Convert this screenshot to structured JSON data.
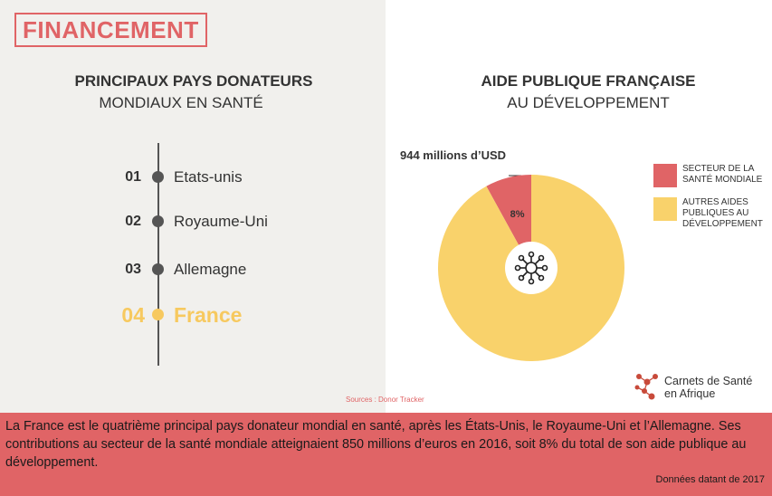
{
  "section_tag": "FINANCEMENT",
  "left": {
    "title_bold": "PRINCIPAUX PAYS DONATEURS",
    "title_light": "MONDIAUX EN SANTÉ",
    "ranking": [
      {
        "num": "01",
        "name": "Etats-unis",
        "highlight": false
      },
      {
        "num": "02",
        "name": "Royaume-Uni",
        "highlight": false
      },
      {
        "num": "03",
        "name": "Allemagne",
        "highlight": false
      },
      {
        "num": "04",
        "name": "France",
        "highlight": true
      }
    ],
    "sources": "Sources : Donor Tracker"
  },
  "right": {
    "title_bold": "AIDE PUBLIQUE FRANÇAISE",
    "title_light": "AU DÉVELOPPEMENT",
    "callout": "944 millions d’USD",
    "legend": [
      {
        "label": "SECTEUR DE LA SANTÉ MONDIALE",
        "color": "#e06466"
      },
      {
        "label": "AUTRES AIDES PUBLIQUES AU DÉVELOPPEMENT",
        "color": "#f9d26b"
      }
    ],
    "center_icon": "network-virus-icon"
  },
  "chart_data": {
    "type": "pie",
    "title": "AIDE PUBLIQUE FRANÇAISE AU DÉVELOPPEMENT",
    "slices": [
      {
        "label": "SECTEUR DE LA SANTÉ MONDIALE",
        "value": 8,
        "display": "8%",
        "color": "#e06466"
      },
      {
        "label": "AUTRES AIDES PUBLIQUES AU DÉVELOPPEMENT",
        "value": 92,
        "display": "",
        "color": "#f9d26b"
      }
    ],
    "annotation": "944 millions d’USD",
    "legend_position": "right"
  },
  "logo": {
    "line1": "Carnets de Santé",
    "line2": "en Afrique",
    "icon": "network-logo-icon"
  },
  "bottom": {
    "text": "La France est le quatrième principal pays donateur mondial en santé, après les États-Unis, le Royaume-Uni et l’Allemagne. Ses contributions au secteur de la santé mondiale atteignaient 850 millions d’euros en 2016, soit 8% du total de son aide publique au développement.",
    "date": "Données datant de 2017"
  }
}
